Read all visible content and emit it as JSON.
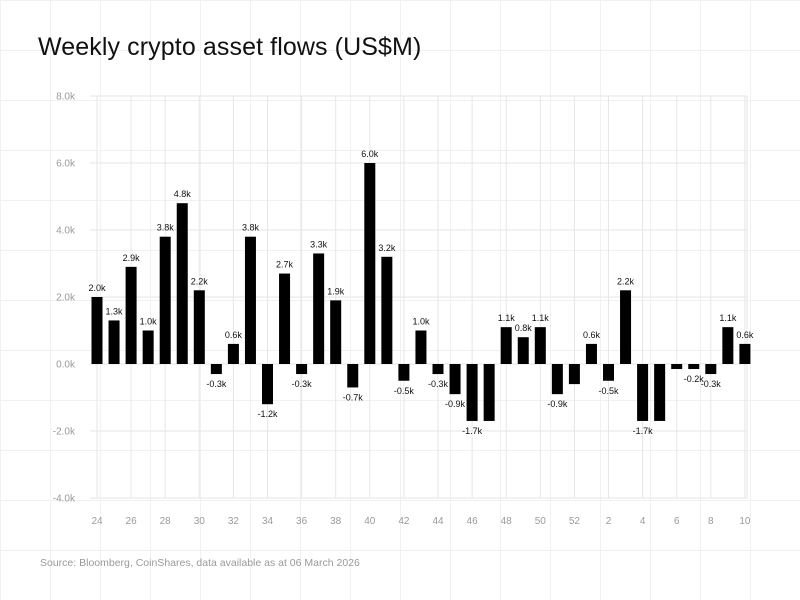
{
  "title": "Weekly crypto asset flows (US$M)",
  "source": "Source: Bloomberg, CoinShares, data available as at 06 March 2026",
  "chart_data": {
    "type": "bar",
    "title": "Weekly crypto asset flows (US$M)",
    "xlabel": "",
    "ylabel": "",
    "ylim": [
      -4000,
      8000
    ],
    "yticks": [
      -4000,
      -2000,
      0,
      2000,
      4000,
      6000,
      8000
    ],
    "ytick_labels": [
      "-4.0k",
      "-2.0k",
      "0.0k",
      "2.0k",
      "4.0k",
      "6.0k",
      "8.0k"
    ],
    "grid": true,
    "bar_color": "#000000",
    "categories": [
      "24",
      "25",
      "26",
      "27",
      "28",
      "29",
      "30",
      "31",
      "32",
      "33",
      "34",
      "35",
      "36",
      "37",
      "38",
      "39",
      "40",
      "41",
      "42",
      "43",
      "44",
      "45",
      "46",
      "47",
      "48",
      "49",
      "50",
      "51",
      "52",
      "1",
      "2",
      "3",
      "4",
      "5",
      "6",
      "7",
      "8",
      "9",
      "10"
    ],
    "xtick_labels": [
      "24",
      "26",
      "28",
      "30",
      "32",
      "34",
      "36",
      "38",
      "40",
      "42",
      "44",
      "46",
      "48",
      "50",
      "52",
      "2",
      "4",
      "6",
      "8",
      "10"
    ],
    "values": [
      2000,
      1300,
      2900,
      1000,
      3800,
      4800,
      2200,
      -300,
      600,
      3800,
      -1200,
      2700,
      -300,
      3300,
      1900,
      -700,
      6000,
      3200,
      -500,
      1000,
      -300,
      -900,
      -1700,
      -1700,
      1100,
      800,
      1100,
      -900,
      -600,
      600,
      -500,
      2200,
      -1700,
      -1700,
      -150,
      -150,
      -300,
      1100,
      600
    ],
    "data_labels": [
      "2.0k",
      "1.3k",
      "2.9k",
      "1.0k",
      "3.8k",
      "4.8k",
      "2.2k",
      "-0.3k",
      "0.6k",
      "3.8k",
      "-1.2k",
      "2.7k",
      "-0.3k",
      "3.3k",
      "1.9k",
      "-0.7k",
      "6.0k",
      "3.2k",
      "-0.5k",
      "1.0k",
      "-0.3k",
      "-0.9k",
      "-1.7k",
      "",
      "1.1k",
      "0.8k",
      "1.1k",
      "-0.9k",
      "",
      "0.6k",
      "-0.5k",
      "2.2k",
      "-1.7k",
      "",
      "",
      "-0.2k",
      "-0.3k",
      "1.1k",
      "0.6k"
    ]
  }
}
